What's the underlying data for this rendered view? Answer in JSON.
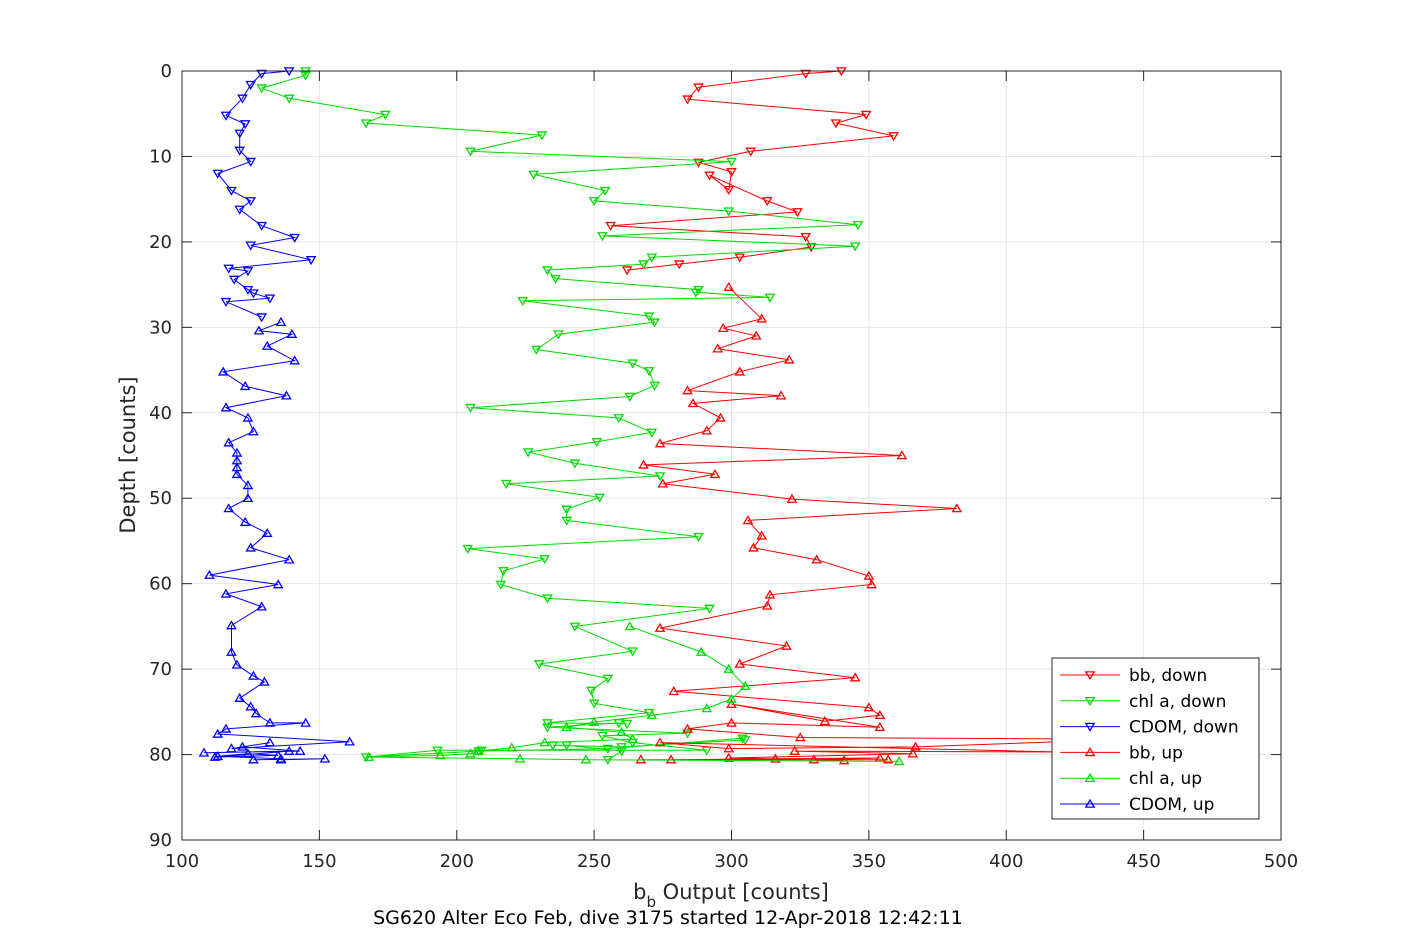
{
  "chart_data": {
    "type": "line",
    "xlabel": {
      "main": "b",
      "sub": "b",
      "rest": " Output [counts]"
    },
    "ylabel": "Depth [counts]",
    "caption": "SG620 Alter Eco Feb, dive 3175 started 12-Apr-2018 12:42:11",
    "xlim": [
      100,
      500
    ],
    "ylim": [
      0,
      90
    ],
    "y_reversed": true,
    "grid": true,
    "legend_placement": "bottom-right",
    "xticks": [
      100,
      150,
      200,
      250,
      300,
      350,
      400,
      450,
      500
    ],
    "yticks": [
      0,
      10,
      20,
      30,
      40,
      50,
      60,
      70,
      80,
      90
    ],
    "colors": {
      "bb": "#ff0000",
      "chl": "#00dd00",
      "cdom": "#0000ff",
      "grid": "#e6e6e6",
      "axis": "#262626"
    },
    "series": [
      {
        "name": "bb, down",
        "color": "#ff0000",
        "marker": "triangle-down",
        "x": [
          340,
          327,
          288,
          284,
          349,
          338,
          359,
          307,
          288,
          300,
          299,
          292,
          313,
          324,
          256,
          327,
          329,
          303,
          281,
          262
        ],
        "y": [
          0,
          0.3,
          1.9,
          3.3,
          5.1,
          6.1,
          7.6,
          9.4,
          10.7,
          11.8,
          13.9,
          12.2,
          15.2,
          16.5,
          18.1,
          19.4,
          20.6,
          21.8,
          22.6,
          23.3
        ]
      },
      {
        "name": "chl a, down",
        "color": "#00dd00",
        "marker": "triangle-down",
        "x": [
          145,
          145,
          129,
          139,
          174,
          167,
          231,
          205,
          300,
          228,
          254,
          250,
          299,
          346,
          253,
          345,
          271,
          268,
          233,
          236,
          288,
          287,
          314,
          224,
          270,
          272,
          237,
          229,
          264,
          270,
          272,
          263,
          205,
          259,
          271,
          251,
          226,
          243,
          274,
          218,
          252,
          240,
          240,
          288,
          204,
          232,
          217,
          216,
          233,
          292,
          243,
          264,
          230,
          255,
          249,
          250,
          270,
          233,
          262,
          259,
          233,
          284,
          253,
          264,
          291,
          209,
          193,
          167,
          208,
          255,
          304,
          305,
          260,
          235,
          240,
          260,
          255
        ],
        "y": [
          0,
          0.5,
          2,
          3.2,
          5.1,
          6.1,
          7.5,
          9.4,
          10.6,
          12.1,
          14,
          15.2,
          16.4,
          18,
          19.3,
          20.5,
          21.8,
          22.6,
          23.3,
          24.3,
          25.6,
          25.9,
          26.5,
          26.9,
          28.7,
          29.4,
          30.8,
          32.6,
          34.2,
          35.1,
          36.8,
          38.1,
          39.4,
          40.6,
          42.3,
          43.4,
          44.6,
          45.9,
          47.4,
          48.3,
          49.9,
          51.3,
          52.6,
          54.5,
          55.9,
          57.1,
          58.5,
          60.1,
          61.7,
          62.9,
          65,
          67.9,
          69.4,
          71.1,
          72.5,
          74,
          75.1,
          76.3,
          76.4,
          76.3,
          76.8,
          77.5,
          77.8,
          78.6,
          79.5,
          79.5,
          79.5,
          80.3,
          79.6,
          79.3,
          78.1,
          78.3,
          79.1,
          78.9,
          78.9,
          79.6,
          80.6
        ]
      },
      {
        "name": "CDOM, down",
        "color": "#0000ff",
        "marker": "triangle-down",
        "x": [
          139,
          129,
          125,
          122,
          116,
          123,
          121,
          121,
          125,
          113,
          118,
          125,
          121,
          129,
          141,
          125,
          147,
          117,
          124,
          119,
          124,
          126,
          132,
          116,
          129
        ],
        "y": [
          0,
          0.3,
          1.6,
          3.2,
          5.2,
          6.2,
          7.3,
          9.3,
          10.6,
          12,
          14,
          15.2,
          16.2,
          18.1,
          19.5,
          20.4,
          22.1,
          23.1,
          23.4,
          24.4,
          25.6,
          26,
          26.6,
          27,
          28.8
        ]
      },
      {
        "name": "bb, up",
        "color": "#ff0000",
        "marker": "triangle-up",
        "x": [
          299,
          311,
          297,
          309,
          295,
          321,
          303,
          284,
          318,
          286,
          296,
          291,
          274,
          362,
          268,
          294,
          275,
          322,
          382,
          306,
          311,
          308,
          331,
          350,
          351,
          314,
          313,
          274,
          320,
          303,
          345,
          279,
          350,
          354,
          334,
          300,
          354,
          300,
          284,
          325,
          445,
          367,
          299,
          274,
          420,
          323,
          366,
          299,
          341,
          330,
          354,
          316,
          278,
          267,
          357
        ],
        "y": [
          25.3,
          29,
          30.1,
          31,
          32.5,
          33.8,
          35.2,
          37.4,
          38,
          38.9,
          40.6,
          42.1,
          43.6,
          45,
          46.1,
          47.2,
          48.3,
          50.1,
          51.2,
          52.6,
          54.4,
          55.8,
          57.2,
          59.1,
          60.1,
          61.3,
          62.6,
          65.2,
          67.3,
          69.4,
          71,
          72.6,
          74.5,
          75.4,
          76.1,
          74.1,
          76.8,
          76.3,
          77,
          78,
          78.2,
          79.1,
          79.3,
          78.6,
          79.7,
          79.6,
          79.9,
          80.4,
          80.7,
          80.6,
          80.4,
          80.5,
          80.6,
          80.6,
          80.6
        ]
      },
      {
        "name": "chl a, up",
        "color": "#00dd00",
        "marker": "triangle-up",
        "x": [
          263,
          289,
          299,
          305,
          300,
          291,
          271,
          250,
          240,
          260,
          264,
          232,
          220,
          208,
          205,
          194,
          168,
          223,
          247,
          361
        ],
        "y": [
          65,
          68,
          70,
          72,
          73.5,
          74.6,
          75.4,
          76.2,
          76.8,
          77.4,
          78.2,
          78.6,
          79.2,
          79.6,
          79.9,
          80.1,
          80.3,
          80.5,
          80.6,
          80.8
        ]
      },
      {
        "name": "CDOM, up",
        "color": "#0000ff",
        "marker": "triangle-up",
        "x": [
          136,
          128,
          140,
          131,
          141,
          115,
          123,
          138,
          116,
          124,
          126,
          117,
          120,
          120,
          120,
          120,
          124,
          124,
          117,
          123,
          131,
          125,
          139,
          110,
          135,
          116,
          129,
          118,
          118,
          120,
          126,
          130,
          121,
          125,
          127,
          132,
          145,
          116,
          113,
          161,
          118,
          132,
          122,
          143,
          108,
          139,
          112,
          135,
          124,
          113,
          136,
          136,
          152,
          126
        ],
        "y": [
          29.4,
          30.4,
          30.8,
          32.2,
          33.9,
          35.2,
          36.9,
          38,
          39.4,
          40.6,
          42.2,
          43.5,
          44.7,
          45.6,
          46.4,
          47.2,
          48.5,
          50,
          51.2,
          52.8,
          54.1,
          55.8,
          57.2,
          59,
          60.1,
          61.2,
          62.7,
          64.9,
          68,
          69.5,
          70.8,
          71.5,
          73.4,
          74.4,
          75.2,
          76.3,
          76.3,
          77,
          77.6,
          78.5,
          79.3,
          78.6,
          79.1,
          79.6,
          79.8,
          79.6,
          80.3,
          80.1,
          79.9,
          80.2,
          80.5,
          80.6,
          80.5,
          80.6
        ]
      }
    ]
  }
}
